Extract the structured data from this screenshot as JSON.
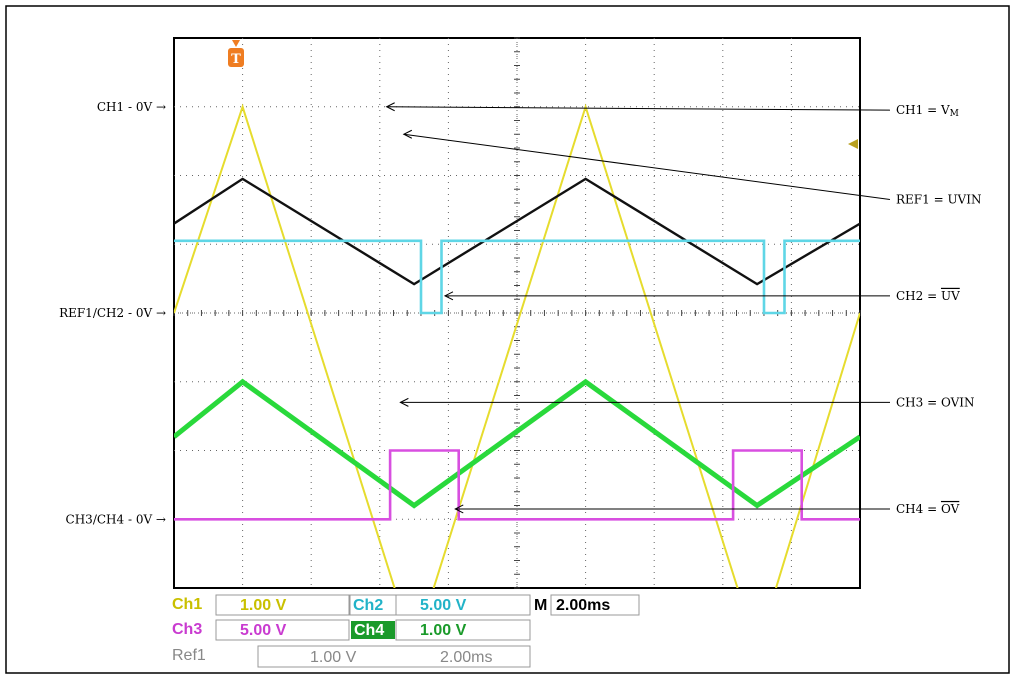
{
  "chart_data": {
    "type": "line",
    "title": "",
    "x_range": [
      0,
      20
    ],
    "y_range": [
      0,
      8
    ],
    "grid": true,
    "left_markers": [
      {
        "label": "CH1 - 0V →",
        "y": 7.0
      },
      {
        "label": "REF1/CH2 - 0V →",
        "y": 4.0
      },
      {
        "label": "CH3/CH4 - 0V →",
        "y": 1.0
      }
    ],
    "annotations": [
      {
        "label": "CH1 = V",
        "sub": "M",
        "bar": false,
        "target": [
          6.2,
          7.0
        ],
        "y": 6.95
      },
      {
        "label": "REF1 = UVIN",
        "sub": "",
        "bar": false,
        "target": [
          6.7,
          6.6
        ],
        "y": 5.65
      },
      {
        "label": "CH2 = ",
        "sub": "",
        "bar": "UV",
        "target": [
          7.9,
          4.25
        ],
        "y": 4.25
      },
      {
        "label": "CH3 = OVIN",
        "sub": "",
        "bar": false,
        "target": [
          6.6,
          2.7
        ],
        "y": 2.7
      },
      {
        "label": "CH4 = ",
        "sub": "",
        "bar": "OV",
        "target": [
          8.2,
          1.15
        ],
        "y": 1.15
      }
    ],
    "series": [
      {
        "name": "CH1",
        "color": "#e6dc2e",
        "width": 2,
        "x": [
          0,
          2,
          7,
          12,
          17,
          20
        ],
        "y": [
          4.0,
          7.0,
          -0.9,
          7.0,
          -0.9,
          4.0
        ]
      },
      {
        "name": "REF1",
        "color": "#111111",
        "width": 2.4,
        "x": [
          0,
          2,
          7,
          12,
          17,
          20
        ],
        "y": [
          5.3,
          5.95,
          4.42,
          5.95,
          4.42,
          5.3
        ]
      },
      {
        "name": "CH2",
        "color": "#5fd6e6",
        "width": 2.6,
        "x": [
          0,
          7.2,
          7.2,
          7.8,
          7.8,
          17.2,
          17.2,
          17.8,
          17.8,
          20
        ],
        "y": [
          5.05,
          5.05,
          4.0,
          4.0,
          5.05,
          5.05,
          4.0,
          4.0,
          5.05,
          5.05
        ]
      },
      {
        "name": "CH3",
        "color": "#29d93b",
        "width": 5,
        "x": [
          0,
          2,
          7,
          12,
          17,
          20
        ],
        "y": [
          2.2,
          3.0,
          1.2,
          3.0,
          1.2,
          2.2
        ]
      },
      {
        "name": "CH4",
        "color": "#d84fe0",
        "width": 2.6,
        "x": [
          0,
          6.3,
          6.3,
          8.3,
          8.3,
          16.3,
          16.3,
          18.3,
          18.3,
          20
        ],
        "y": [
          1.0,
          1.0,
          2.0,
          2.0,
          1.0,
          1.0,
          2.0,
          2.0,
          1.0,
          1.0
        ]
      }
    ]
  },
  "trigger_marker": "T",
  "status": {
    "ch1": {
      "label": "Ch1",
      "value": "1.00 V",
      "color": "#c9c000"
    },
    "ch2": {
      "label": "Ch2",
      "value": "5.00 V",
      "color": "#22b3c8"
    },
    "ch3": {
      "label": "Ch3",
      "value": "5.00 V",
      "color": "#c93bd0"
    },
    "ch4": {
      "label": "Ch4",
      "value": "1.00 V",
      "color": "#1a9a2a"
    },
    "time": {
      "label": "M",
      "value": "2.00ms"
    },
    "ref1": {
      "label": "Ref1",
      "value": "1.00 V",
      "time": "2.00ms",
      "color": "#888888"
    }
  }
}
